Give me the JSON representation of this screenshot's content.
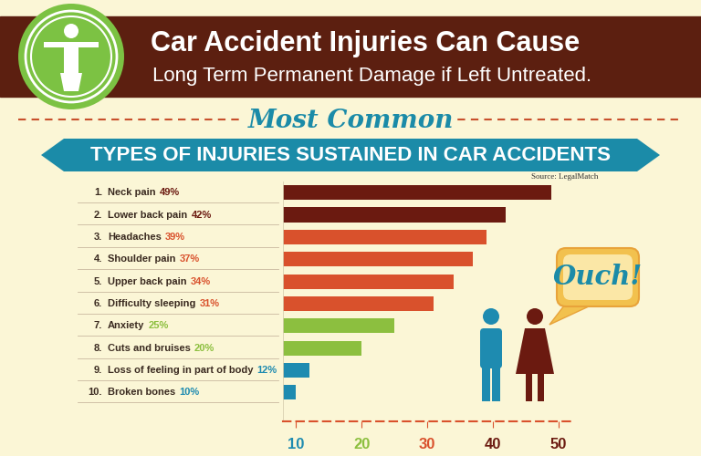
{
  "chart_data": {
    "type": "bar",
    "orientation": "horizontal",
    "title": "Car Accident Injuries Can Cause",
    "subtitle": "Long Term Permanent Damage if Left Untreated.",
    "annotations": [
      "Most Common",
      "TYPES OF INJURIES SUSTAINED IN CAR ACCIDENTS",
      "Source: LegalMatch",
      "Ouch!"
    ],
    "ranks": [
      "1.",
      "2.",
      "3.",
      "4.",
      "5.",
      "6.",
      "7.",
      "8.",
      "9.",
      "10."
    ],
    "categories": [
      "Neck pain",
      "Lower back pain",
      "Headaches",
      "Shoulder pain",
      "Upper back pain",
      "Difficulty sleeping",
      "Anxiety",
      "Cuts and bruises",
      "Loss of feeling in part of body",
      "Broken bones"
    ],
    "values": [
      49,
      42,
      39,
      37,
      34,
      31,
      25,
      20,
      12,
      10
    ],
    "value_labels": [
      "49%",
      "42%",
      "39%",
      "37%",
      "34%",
      "31%",
      "25%",
      "20%",
      "12%",
      "10%"
    ],
    "data_labels": true,
    "colors": [
      "#6b1a10",
      "#6b1a10",
      "#d9512c",
      "#d9512c",
      "#d9512c",
      "#d9512c",
      "#8cbf3f",
      "#8cbf3f",
      "#1e8bb0",
      "#1e8bb0"
    ],
    "xlim": [
      8,
      52
    ],
    "xticks": [
      10,
      20,
      30,
      40,
      50
    ],
    "grid": false
  }
}
